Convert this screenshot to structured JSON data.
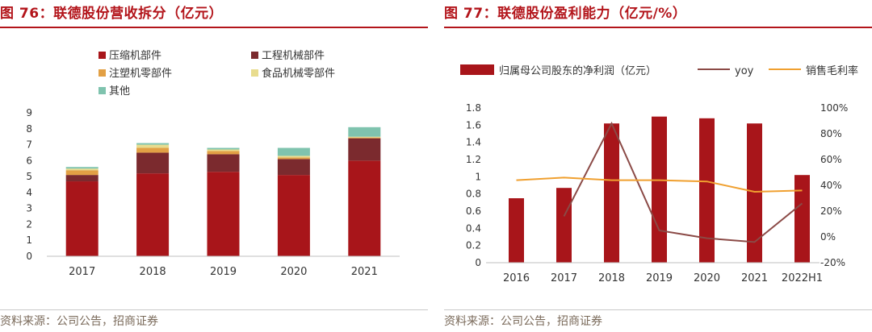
{
  "figures": {
    "left": {
      "title": "图 76：联德股份营收拆分（亿元）",
      "source": "资料来源：公司公告，招商证券"
    },
    "right": {
      "title": "图 77：联德股份盈利能力（亿元/%）",
      "source": "资料来源：公司公告，招商证券"
    }
  },
  "chart_data": [
    {
      "type": "bar",
      "stacked": true,
      "categories": [
        "2017",
        "2018",
        "2019",
        "2020",
        "2021"
      ],
      "series": [
        {
          "name": "压缩机部件",
          "color": "#a8151a",
          "values": [
            4.7,
            5.2,
            5.3,
            5.1,
            6.0
          ]
        },
        {
          "name": "工程机械部件",
          "color": "#7b2a2e",
          "values": [
            0.4,
            1.3,
            1.1,
            1.0,
            1.4
          ]
        },
        {
          "name": "注塑机零部件",
          "color": "#e2a045",
          "values": [
            0.3,
            0.3,
            0.2,
            0.1,
            0.05
          ]
        },
        {
          "name": "食品机械零部件",
          "color": "#e8dc8e",
          "values": [
            0.1,
            0.2,
            0.1,
            0.1,
            0.05
          ]
        },
        {
          "name": "其他",
          "color": "#7fc3ae",
          "values": [
            0.1,
            0.1,
            0.1,
            0.5,
            0.6
          ]
        }
      ],
      "ylim": [
        0,
        9
      ],
      "yticks": [
        "0",
        "1",
        "2",
        "3",
        "4",
        "5",
        "6",
        "7",
        "8",
        "9"
      ],
      "grid": false,
      "legend_position": "top"
    },
    {
      "type": "bar+line",
      "categories": [
        "2016",
        "2017",
        "2018",
        "2019",
        "2020",
        "2021",
        "2022H1"
      ],
      "bar_series": {
        "name": "归属母公司股东的净利润（亿元）",
        "color": "#a8151a",
        "values": [
          0.75,
          0.87,
          1.62,
          1.7,
          1.68,
          1.62,
          1.02
        ]
      },
      "line_series": [
        {
          "name": "yoy",
          "color": "#8b4a46",
          "values": [
            null,
            16,
            88,
            5,
            -1,
            -4,
            26
          ]
        },
        {
          "name": "销售毛利率",
          "color": "#f0a030",
          "values": [
            44,
            46,
            44,
            44,
            43,
            35,
            36
          ]
        }
      ],
      "ylim_left": [
        0,
        1.8
      ],
      "yticks_left": [
        "0",
        "0.2",
        "0.4",
        "0.6",
        "0.8",
        "1",
        "1.2",
        "1.4",
        "1.6",
        "1.8"
      ],
      "ylim_right": [
        -20,
        100
      ],
      "yticks_right": [
        "-20%",
        "0%",
        "20%",
        "40%",
        "60%",
        "80%",
        "100%"
      ],
      "grid": false,
      "legend_position": "top"
    }
  ]
}
